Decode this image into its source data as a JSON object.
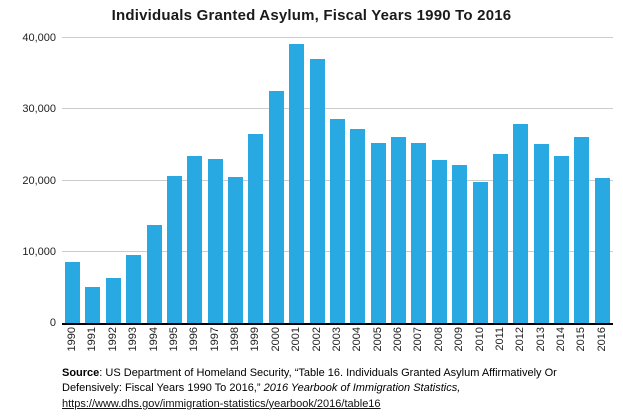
{
  "colors": {
    "bar": "#29a9e2",
    "gridline": "#cccccc",
    "axis": "#000000"
  },
  "chart_data": {
    "type": "bar",
    "title": "Individuals Granted Asylum, Fiscal Years 1990 To 2016",
    "xlabel": "",
    "ylabel": "",
    "ylim": [
      0,
      40000
    ],
    "grid": true,
    "legend_position": "none",
    "categories": [
      "1990",
      "1991",
      "1992",
      "1993",
      "1994",
      "1995",
      "1996",
      "1997",
      "1998",
      "1999",
      "2000",
      "2001",
      "2002",
      "2003",
      "2004",
      "2005",
      "2006",
      "2007",
      "2008",
      "2009",
      "2010",
      "2011",
      "2012",
      "2013",
      "2014",
      "2015",
      "2016"
    ],
    "values": [
      8500,
      5000,
      6300,
      9500,
      13800,
      20700,
      23500,
      23000,
      20500,
      26500,
      32500,
      39200,
      37000,
      28700,
      27300,
      25300,
      26100,
      25300,
      22900,
      22200,
      19800,
      23700,
      28000,
      25100,
      23400,
      26100,
      20400
    ],
    "y_ticks": [
      {
        "value": 0,
        "label": "0"
      },
      {
        "value": 10000,
        "label": "10,000"
      },
      {
        "value": 20000,
        "label": "20,000"
      },
      {
        "value": 30000,
        "label": "30,000"
      },
      {
        "value": 40000,
        "label": "40,000"
      }
    ]
  },
  "source": {
    "label": "Source",
    "body": ": US Department of Homeland Security, “Table 16. Individuals Granted Asylum Affirmatively Or Defensively: Fiscal Years 1990 To 2016,” ",
    "italic": "2016 Yearbook of Immigration Statistics,",
    "url": "https://www.dhs.gov/immigration-statistics/yearbook/2016/table16"
  }
}
